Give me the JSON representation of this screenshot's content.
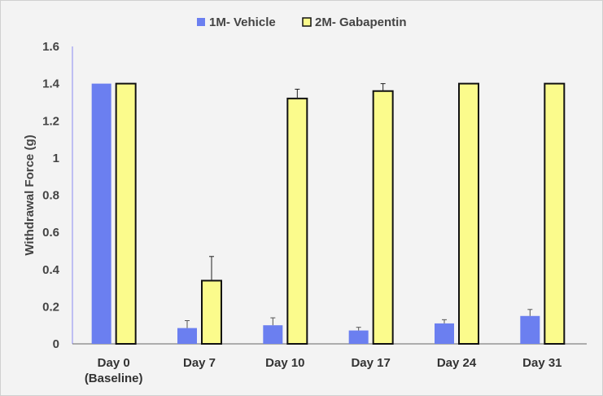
{
  "chart_data": {
    "type": "bar",
    "title": "",
    "xlabel": "",
    "ylabel": "Withdrawal Force (g)",
    "ylim": [
      0,
      1.6
    ],
    "yticks": [
      "0",
      "0.2",
      "0.4",
      "0.6",
      "0.8",
      "1",
      "1.2",
      "1.4",
      "1.6"
    ],
    "ytick_values": [
      0,
      0.2,
      0.4,
      0.6,
      0.8,
      1.0,
      1.2,
      1.4,
      1.6
    ],
    "categories": [
      [
        "Day 0",
        "(Baseline)"
      ],
      [
        "Day 7"
      ],
      [
        "Day 10"
      ],
      [
        "Day 17"
      ],
      [
        "Day 24"
      ],
      [
        "Day 31"
      ]
    ],
    "legend_position": "top-center",
    "series": [
      {
        "name": "1M- Vehicle",
        "color": "#6b7ff0",
        "values": [
          1.4,
          0.085,
          0.1,
          0.072,
          0.11,
          0.15
        ],
        "errors": [
          0,
          0.04,
          0.04,
          0.017,
          0.02,
          0.035
        ]
      },
      {
        "name": "2M- Gabapentin",
        "color": "#fbfb8c",
        "values": [
          1.4,
          0.34,
          1.32,
          1.36,
          1.4,
          1.4
        ],
        "errors": [
          0,
          0.13,
          0.05,
          0.04,
          0,
          0
        ]
      }
    ]
  }
}
